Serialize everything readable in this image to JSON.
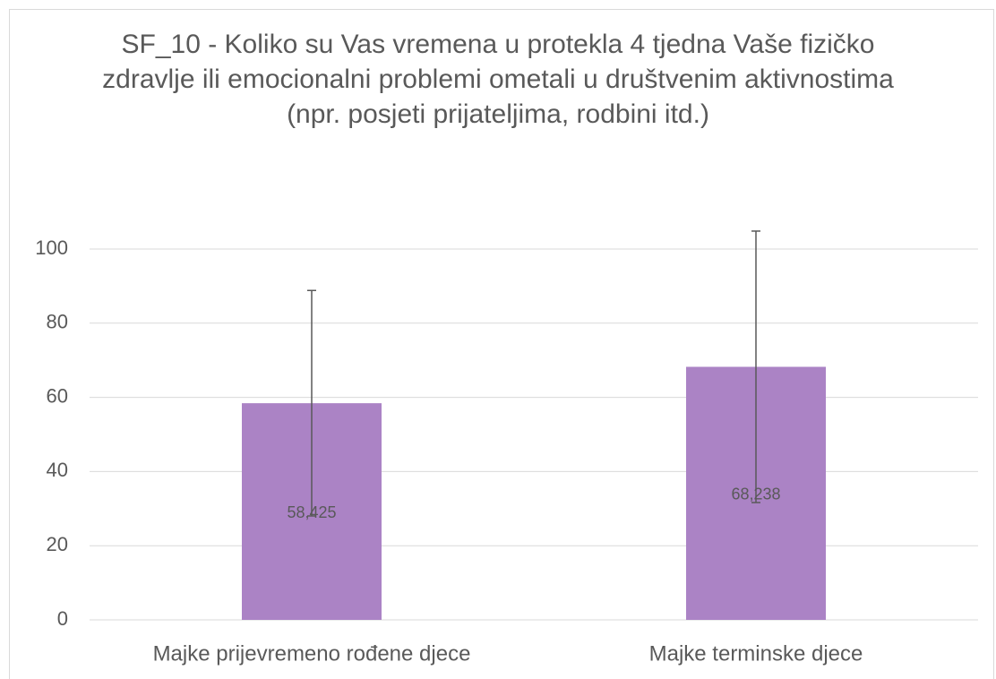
{
  "chart_data": {
    "type": "bar",
    "title": "SF_10 - Koliko su Vas vremena u protekla 4 tjedna Vaše fizičko zdravlje ili emocionalni problemi ometali u društvenim aktivnostima (npr. posjeti prijateljima, rodbini itd.)",
    "categories": [
      "Majke prijevremeno rođene djece",
      "Majke terminske djece"
    ],
    "values": [
      58.425,
      68.238
    ],
    "value_labels": [
      "58,425",
      "68,238"
    ],
    "errors": [
      30.4,
      36.6
    ],
    "color": "#ab83c5",
    "ylim": [
      0,
      100
    ],
    "yticks": [
      0,
      20,
      40,
      60,
      80,
      100
    ],
    "grid": true
  }
}
